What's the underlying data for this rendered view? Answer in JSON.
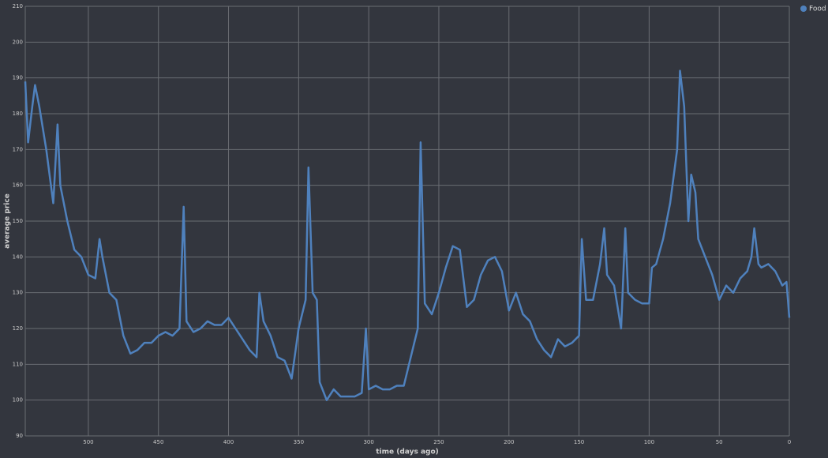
{
  "chart_data": {
    "type": "line",
    "xlabel": "time (days ago)",
    "ylabel": "average price",
    "x": [
      545,
      543,
      540,
      538,
      535,
      530,
      525,
      522,
      520,
      515,
      510,
      505,
      500,
      495,
      492,
      490,
      485,
      480,
      475,
      470,
      465,
      460,
      455,
      450,
      445,
      440,
      435,
      432,
      430,
      425,
      420,
      415,
      410,
      405,
      400,
      395,
      390,
      385,
      380,
      378,
      375,
      370,
      365,
      360,
      355,
      350,
      345,
      343,
      340,
      337,
      335,
      330,
      325,
      320,
      315,
      310,
      305,
      302,
      300,
      295,
      290,
      285,
      280,
      275,
      270,
      265,
      263,
      260,
      255,
      250,
      245,
      240,
      235,
      230,
      225,
      220,
      215,
      210,
      205,
      200,
      195,
      190,
      185,
      180,
      175,
      170,
      165,
      160,
      155,
      150,
      148,
      145,
      140,
      135,
      132,
      130,
      125,
      120,
      117,
      115,
      110,
      105,
      100,
      98,
      95,
      90,
      85,
      80,
      78,
      75,
      72,
      70,
      67,
      65,
      60,
      55,
      50,
      45,
      40,
      35,
      30,
      27,
      25,
      22,
      20,
      15,
      10,
      5,
      2,
      0
    ],
    "series": [
      {
        "name": "Food",
        "color": "#4f81bd",
        "values": [
          189,
          172,
          182,
          188,
          182,
          170,
          155,
          177,
          160,
          150,
          142,
          140,
          135,
          134,
          145,
          140,
          130,
          128,
          118,
          113,
          114,
          116,
          116,
          118,
          119,
          118,
          120,
          154,
          122,
          119,
          120,
          122,
          121,
          121,
          123,
          120,
          117,
          114,
          112,
          130,
          122,
          118,
          112,
          111,
          106,
          120,
          128,
          165,
          130,
          128,
          105,
          100,
          103,
          101,
          101,
          101,
          102,
          120,
          103,
          104,
          103,
          103,
          104,
          104,
          112,
          120,
          172,
          127,
          124,
          130,
          137,
          143,
          142,
          126,
          128,
          135,
          139,
          140,
          136,
          125,
          130,
          124,
          122,
          117,
          114,
          112,
          117,
          115,
          116,
          118,
          145,
          128,
          128,
          138,
          148,
          135,
          132,
          120,
          148,
          130,
          128,
          127,
          127,
          137,
          138,
          145,
          155,
          170,
          192,
          182,
          150,
          163,
          158,
          145,
          140,
          135,
          128,
          132,
          130,
          134,
          136,
          140,
          148,
          138,
          137,
          138,
          136,
          132,
          133,
          123
        ]
      }
    ],
    "xlim": [
      545,
      0
    ],
    "ylim": [
      90,
      210
    ],
    "xticks": [
      500,
      450,
      400,
      350,
      300,
      250,
      200,
      150,
      100,
      50,
      0
    ],
    "yticks": [
      90,
      100,
      110,
      120,
      130,
      140,
      150,
      160,
      170,
      180,
      190,
      200,
      210
    ],
    "grid": true,
    "legend": "top-right"
  }
}
